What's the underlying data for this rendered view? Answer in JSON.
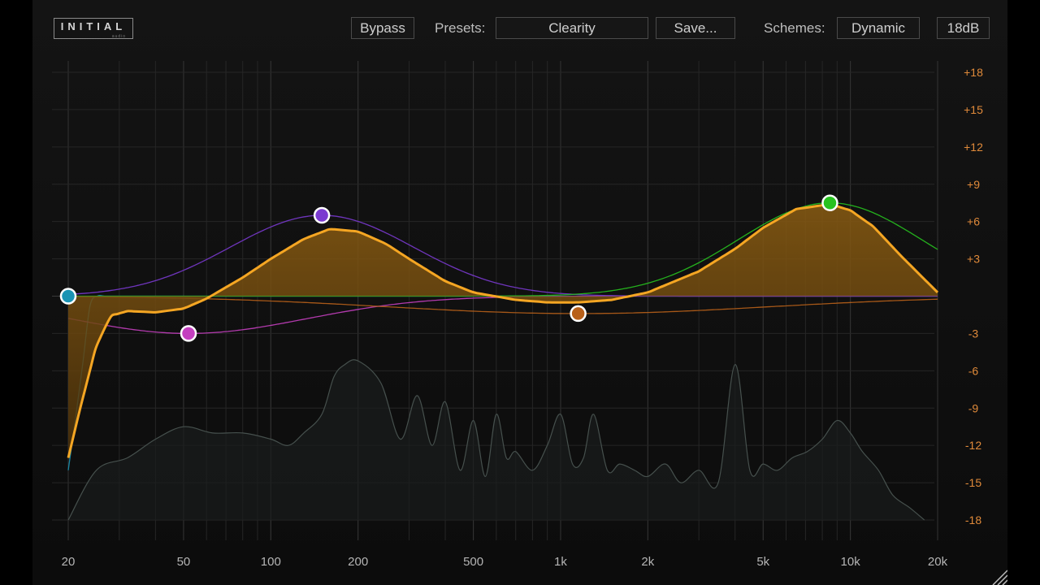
{
  "brand": {
    "logo": "INITIAL",
    "logo_sub": "audio"
  },
  "toolbar": {
    "bypass": "Bypass",
    "presets_label": "Presets:",
    "preset_value": "Clearity",
    "save": "Save...",
    "schemes_label": "Schemes:",
    "scheme_value": "Dynamic",
    "range": "18dB"
  },
  "colors": {
    "accent": "#f5a623",
    "fill": "#6e4a0e",
    "db_label": "#e08a3a",
    "band_low_cut": "#1a93b3",
    "band_low_shelf": "#c43fbf",
    "band_mid_bell": "#7a3ad0",
    "band_presence": "#b8601a",
    "band_high_bell": "#27c21f"
  },
  "chart_data": {
    "type": "line",
    "x_axis": {
      "scale": "log",
      "range_hz": [
        20,
        20000
      ],
      "tick_labels": [
        "20",
        "50",
        "100",
        "200",
        "500",
        "1k",
        "2k",
        "5k",
        "10k",
        "20k"
      ],
      "tick_values": [
        20,
        50,
        100,
        200,
        500,
        1000,
        2000,
        5000,
        10000,
        20000
      ]
    },
    "y_axis": {
      "unit": "dB",
      "range": [
        -18,
        18
      ],
      "tick_labels": [
        "+18",
        "+15",
        "+12",
        "+9",
        "+6",
        "+3",
        "-3",
        "-6",
        "-9",
        "-12",
        "-15",
        "-18"
      ],
      "tick_values": [
        18,
        15,
        12,
        9,
        6,
        3,
        -3,
        -6,
        -9,
        -12,
        -15,
        -18
      ]
    },
    "bands": [
      {
        "id": "low_cut",
        "freq": 20,
        "gain": 0,
        "color": "#1a93b3"
      },
      {
        "id": "low_shelf",
        "freq": 52,
        "gain": -3,
        "color": "#c43fbf"
      },
      {
        "id": "mid_bell",
        "freq": 150,
        "gain": 6.5,
        "color": "#7a3ad0"
      },
      {
        "id": "presence",
        "freq": 1150,
        "gain": -1.4,
        "color": "#b8601a"
      },
      {
        "id": "high_bell",
        "freq": 8500,
        "gain": 7.5,
        "color": "#27c21f"
      }
    ],
    "response_curve": {
      "freqs": [
        20,
        22,
        25,
        28,
        32,
        40,
        50,
        60,
        80,
        100,
        130,
        160,
        200,
        250,
        300,
        400,
        500,
        700,
        900,
        1150,
        1500,
        2000,
        3000,
        4000,
        5000,
        6500,
        8500,
        10000,
        12000,
        15000,
        20000
      ],
      "gains": [
        -13,
        -9,
        -4,
        -1.6,
        -1.2,
        -1.3,
        -1.0,
        -0.2,
        1.5,
        3.0,
        4.6,
        5.4,
        5.2,
        4.2,
        3.0,
        1.2,
        0.3,
        -0.3,
        -0.5,
        -0.5,
        -0.3,
        0.3,
        2.0,
        3.8,
        5.5,
        7.0,
        7.4,
        6.9,
        5.6,
        3.2,
        0.3
      ]
    },
    "spectrum": {
      "freqs": [
        20,
        25,
        32,
        40,
        50,
        63,
        80,
        100,
        115,
        130,
        150,
        165,
        180,
        200,
        240,
        280,
        320,
        360,
        400,
        450,
        500,
        550,
        600,
        650,
        700,
        800,
        900,
        1000,
        1100,
        1200,
        1300,
        1450,
        1600,
        1800,
        2000,
        2300,
        2600,
        3000,
        3500,
        4000,
        4500,
        5000,
        5600,
        6300,
        7100,
        8000,
        9000,
        10000,
        11000,
        12500,
        14000,
        16000,
        18000
      ],
      "gains": [
        -18,
        -14,
        -13,
        -11.5,
        -10.5,
        -11,
        -11,
        -11.5,
        -12,
        -11,
        -9.5,
        -6.5,
        -5.5,
        -5.2,
        -7,
        -11.5,
        -8,
        -12,
        -8.5,
        -14,
        -10,
        -14.5,
        -9.5,
        -13,
        -12.5,
        -14,
        -12,
        -9.5,
        -13.5,
        -13,
        -9.5,
        -14,
        -13.5,
        -14,
        -14.5,
        -13.5,
        -15,
        -14,
        -15,
        -5.5,
        -14,
        -13.5,
        -14,
        -13,
        -12.5,
        -11.5,
        -10,
        -11,
        -12.5,
        -14,
        -16,
        -17,
        -18
      ]
    },
    "grid": true
  }
}
